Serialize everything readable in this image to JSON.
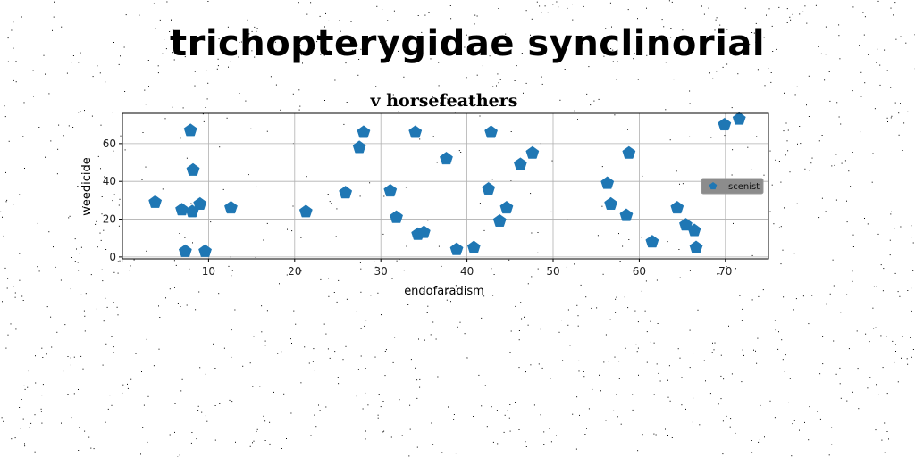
{
  "figure": {
    "suptitle": "trichopterygidae synclinorial"
  },
  "chart_data": {
    "type": "scatter",
    "title": "v horsefeathers",
    "xlabel": "endofaradism",
    "ylabel": "weedicide",
    "xlim": [
      0,
      75
    ],
    "ylim": [
      -1,
      76
    ],
    "xticks": [
      10,
      20,
      30,
      40,
      50,
      60,
      70
    ],
    "yticks": [
      0,
      20,
      40,
      60
    ],
    "xtick_labels": [
      "10",
      "20",
      "30",
      "40",
      "50",
      "60",
      "70"
    ],
    "ytick_labels": [
      "0",
      "20",
      "40",
      "60"
    ],
    "grid": true,
    "legend": {
      "placement": "center-right",
      "entries": [
        "scenist"
      ]
    },
    "marker": "pentagon",
    "colors": {
      "series": "#1f77b4",
      "legend_bg": "#8c8c8c"
    },
    "series": [
      {
        "name": "scenist",
        "x": [
          3.8,
          6.9,
          7.3,
          7.9,
          8.1,
          8.2,
          9.0,
          9.6,
          12.6,
          21.3,
          25.9,
          27.5,
          28.0,
          31.1,
          31.8,
          34.0,
          34.3,
          35.0,
          37.6,
          38.8,
          40.8,
          42.5,
          42.8,
          43.8,
          44.6,
          46.2,
          47.6,
          56.3,
          56.7,
          58.5,
          58.8,
          61.5,
          64.4,
          65.4,
          66.4,
          66.6,
          69.9,
          71.6
        ],
        "y": [
          29,
          25,
          3,
          67,
          24,
          46,
          28,
          3,
          26,
          24,
          34,
          58,
          66,
          35,
          21,
          66,
          12,
          13,
          52,
          4,
          5,
          36,
          66,
          19,
          26,
          49,
          55,
          39,
          28,
          22,
          55,
          8,
          26,
          17,
          14,
          5,
          70,
          73
        ]
      }
    ]
  }
}
